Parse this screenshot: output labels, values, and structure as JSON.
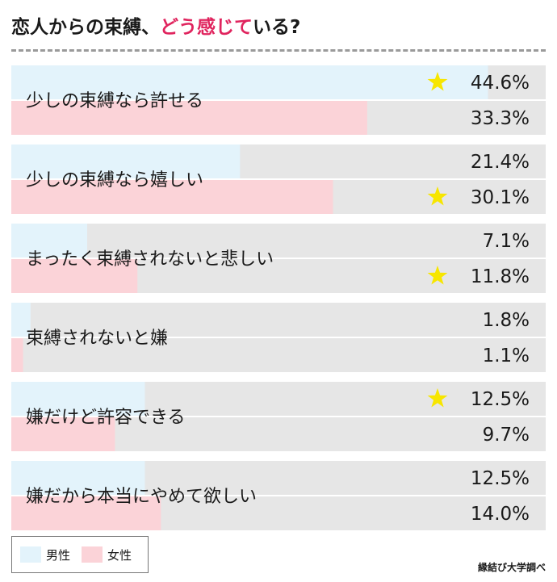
{
  "title": {
    "pre": "恋人からの束縛、",
    "highlight": "どう感じて",
    "post": "いる?"
  },
  "legend": {
    "male": "男性",
    "female": "女性"
  },
  "source": "縁結び大学調べ",
  "colors": {
    "male": "#e3f3fb",
    "female": "#fbd3d8",
    "track": "#e6e6e6",
    "star": "#f7e600",
    "title_highlight": "#e0245e"
  },
  "chart_data": {
    "type": "bar",
    "orientation": "horizontal",
    "title": "恋人からの束縛、どう感じている?",
    "xlim": [
      0,
      50
    ],
    "categories": [
      "少しの束縛なら許せる",
      "少しの束縛なら嬉しい",
      "まったく束縛されないと悲しい",
      "束縛されないと嫌",
      "嫌だけど許容できる",
      "嫌だから本当にやめて欲しい"
    ],
    "series": [
      {
        "name": "男性",
        "values": [
          44.6,
          21.4,
          7.1,
          1.8,
          12.5,
          12.5
        ],
        "labels": [
          "44.6%",
          "21.4%",
          "7.1%",
          "1.8%",
          "12.5%",
          "12.5%"
        ]
      },
      {
        "name": "女性",
        "values": [
          33.3,
          30.1,
          11.8,
          1.1,
          9.7,
          14.0
        ],
        "labels": [
          "33.3%",
          "30.1%",
          "11.8%",
          "1.1%",
          "9.7%",
          "14.0%"
        ]
      }
    ],
    "stars": [
      {
        "category": 0,
        "series": 0
      },
      {
        "category": 1,
        "series": 1
      },
      {
        "category": 2,
        "series": 1
      },
      {
        "category": 4,
        "series": 0
      }
    ],
    "legend_position": "bottom-left",
    "grid": false
  }
}
